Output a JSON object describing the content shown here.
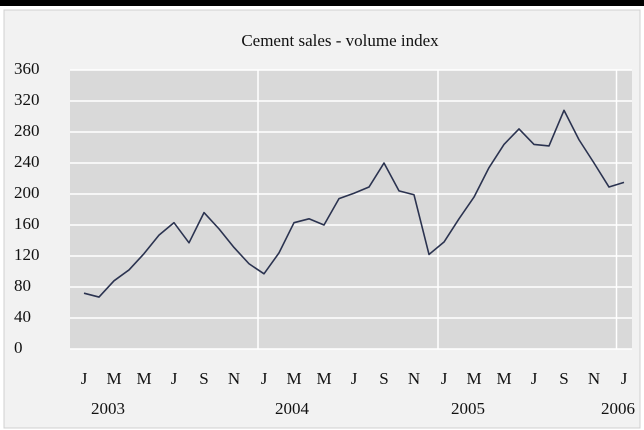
{
  "chart_data": {
    "type": "line",
    "title": "Cement sales - volume index",
    "categories": [
      "J",
      null,
      "M",
      null,
      "M",
      null,
      "J",
      null,
      "S",
      null,
      "N",
      null,
      "J",
      null,
      "M",
      null,
      "M",
      null,
      "J",
      null,
      "S",
      null,
      "N",
      null,
      "J",
      null,
      "M",
      null,
      "M",
      null,
      "J",
      null,
      "S",
      null,
      "N",
      null,
      "J"
    ],
    "years": [
      "2003",
      "2004",
      "2005",
      "2006"
    ],
    "series": [
      {
        "color": "#2b3350",
        "values": [
          72,
          67,
          88,
          102,
          123,
          147,
          163,
          137,
          176,
          155,
          131,
          110,
          97,
          124,
          163,
          168,
          160,
          194,
          201,
          209,
          240,
          204,
          199,
          122,
          138,
          168,
          196,
          234,
          264,
          284,
          264,
          262,
          308,
          270,
          240,
          209,
          215
        ]
      }
    ],
    "ylim": [
      0,
      360
    ],
    "yticks": [
      0,
      40,
      80,
      120,
      160,
      200,
      240,
      280,
      320,
      360
    ],
    "grid": true
  }
}
